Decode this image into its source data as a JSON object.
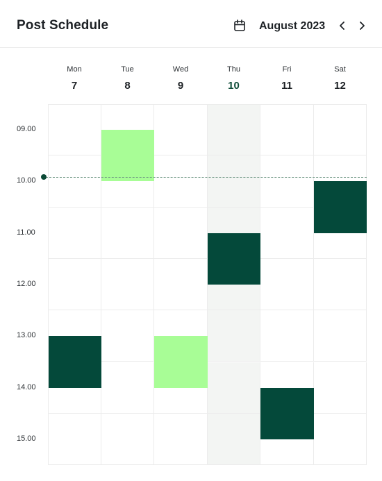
{
  "header": {
    "title": "Post Schedule",
    "month_label": "August 2023",
    "calendar_icon": "calendar-icon",
    "prev_icon": "chevron-left-icon",
    "next_icon": "chevron-right-icon"
  },
  "days": [
    {
      "name": "Mon",
      "num": "7",
      "today": false
    },
    {
      "name": "Tue",
      "num": "8",
      "today": false
    },
    {
      "name": "Wed",
      "num": "9",
      "today": false
    },
    {
      "name": "Thu",
      "num": "10",
      "today": true
    },
    {
      "name": "Fri",
      "num": "11",
      "today": false
    },
    {
      "name": "Sat",
      "num": "12",
      "today": false
    }
  ],
  "times": [
    "09.00",
    "10.00",
    "11.00",
    "12.00",
    "13.00",
    "14.00",
    "15.00"
  ],
  "current_time": "10.00",
  "events": [
    {
      "day": "Tue",
      "start": "09.50",
      "end": "10.50",
      "color": "light"
    },
    {
      "day": "Sat",
      "start": "10.50",
      "end": "11.50",
      "color": "dark"
    },
    {
      "day": "Thu",
      "start": "11.50",
      "end": "12.50",
      "color": "dark"
    },
    {
      "day": "Mon",
      "start": "13.50",
      "end": "14.50",
      "color": "dark"
    },
    {
      "day": "Wed",
      "start": "13.50",
      "end": "14.50",
      "color": "light"
    },
    {
      "day": "Fri",
      "start": "14.50",
      "end": "15.50",
      "color": "dark"
    }
  ],
  "colors": {
    "dark": "#04493a",
    "light": "#a8fd96",
    "today_bg": "#f3f5f3",
    "today_num": "#0f4d39",
    "now_line": "#6f9784"
  }
}
